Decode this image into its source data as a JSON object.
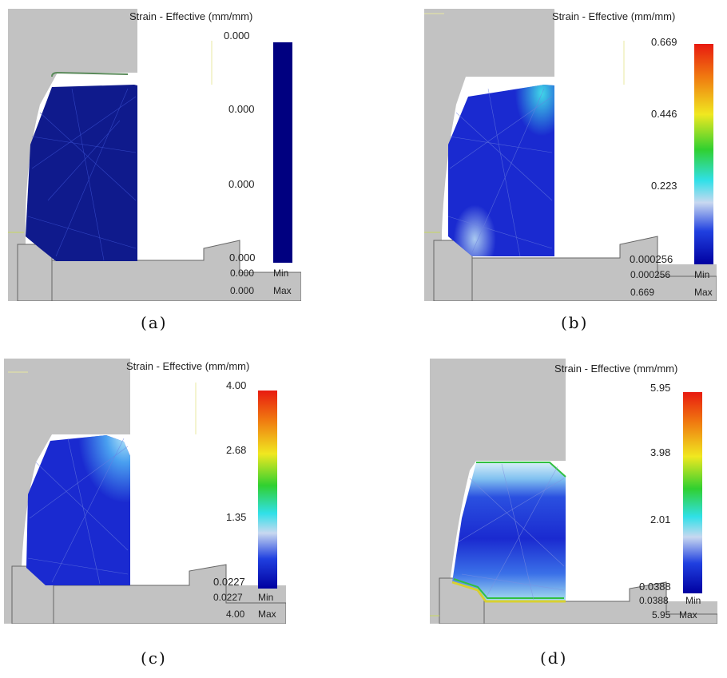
{
  "panels": [
    {
      "id": "a",
      "title": "Strain - Effective (mm/mm)",
      "ticks": [
        "0.000",
        "0.000",
        "0.000",
        "0.000"
      ],
      "min_value": "0.000",
      "min_label": "Min",
      "max_value": "0.000",
      "max_label": "Max",
      "caption": "(a)",
      "colormap": "uniform-dark-blue"
    },
    {
      "id": "b",
      "title": "Strain - Effective (mm/mm)",
      "ticks": [
        "0.669",
        "0.446",
        "0.223",
        "0.000256"
      ],
      "min_value": "0.000256",
      "min_label": "Min",
      "max_value": "0.669",
      "max_label": "Max",
      "caption": "(b)",
      "colormap": "rainbow"
    },
    {
      "id": "c",
      "title": "Strain - Effective (mm/mm)",
      "ticks": [
        "4.00",
        "2.68",
        "1.35",
        "0.0227"
      ],
      "min_value": "0.0227",
      "min_label": "Min",
      "max_value": "4.00",
      "max_label": "Max",
      "caption": "(c)",
      "colormap": "rainbow"
    },
    {
      "id": "d",
      "title": "Strain - Effective (mm/mm)",
      "ticks": [
        "5.95",
        "3.98",
        "2.01",
        "0.0388"
      ],
      "min_value": "0.0388",
      "min_label": "Min",
      "max_value": "5.95",
      "max_label": "Max",
      "caption": "(d)",
      "colormap": "rainbow"
    }
  ],
  "colors": {
    "die_gray": "#c2c2c2",
    "workpiece_blue": "#1a26c8",
    "dark_blue": "#000080",
    "outline_dark": "#555555"
  }
}
